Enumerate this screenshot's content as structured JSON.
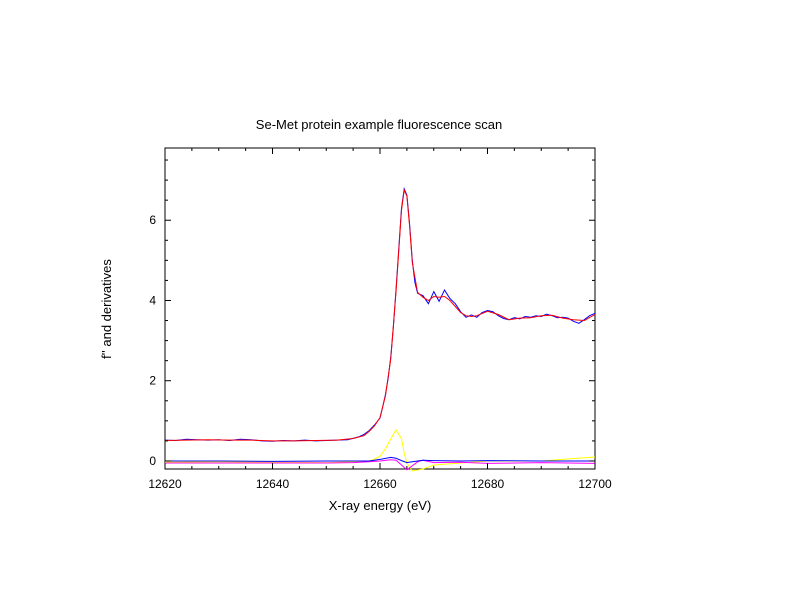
{
  "chart_data": {
    "type": "line",
    "title": "Se-Met protein example fluorescence scan",
    "xlabel": "X-ray energy (eV)",
    "ylabel": "f'' and derivatives",
    "xlim": [
      12620,
      12700
    ],
    "ylim": [
      -0.2,
      7.8
    ],
    "x_ticks": [
      12620,
      12640,
      12660,
      12680,
      12700
    ],
    "y_ticks": [
      0,
      2,
      4,
      6
    ],
    "grid": false,
    "legend": "none",
    "series": [
      {
        "color": "#0000ff",
        "x": [
          12620,
          12622,
          12624,
          12626,
          12628,
          12630,
          12632,
          12634,
          12636,
          12638,
          12640,
          12642,
          12644,
          12646,
          12648,
          12650,
          12652,
          12654,
          12656,
          12657,
          12658,
          12659,
          12660,
          12660.5,
          12661,
          12661.5,
          12662,
          12662.5,
          12663,
          12663.5,
          12664,
          12664.5,
          12665,
          12665.5,
          12666,
          12666.5,
          12667,
          12668,
          12669,
          12670,
          12671,
          12672,
          12673,
          12674,
          12675,
          12676,
          12677,
          12678,
          12679,
          12680,
          12681,
          12682,
          12683,
          12684,
          12685,
          12686,
          12687,
          12688,
          12689,
          12690,
          12691,
          12692,
          12693,
          12694,
          12695,
          12696,
          12697,
          12698,
          12699,
          12700
        ],
        "y": [
          0.52,
          0.51,
          0.54,
          0.53,
          0.52,
          0.53,
          0.51,
          0.54,
          0.53,
          0.5,
          0.49,
          0.51,
          0.5,
          0.52,
          0.5,
          0.51,
          0.52,
          0.53,
          0.6,
          0.66,
          0.76,
          0.9,
          1.07,
          1.35,
          1.65,
          2.05,
          2.6,
          3.35,
          4.3,
          5.3,
          6.3,
          6.78,
          6.62,
          5.9,
          5.0,
          4.45,
          4.18,
          4.12,
          3.92,
          4.22,
          3.98,
          4.26,
          4.05,
          3.92,
          3.72,
          3.58,
          3.64,
          3.58,
          3.7,
          3.75,
          3.72,
          3.62,
          3.55,
          3.52,
          3.57,
          3.54,
          3.6,
          3.58,
          3.62,
          3.6,
          3.66,
          3.62,
          3.57,
          3.58,
          3.56,
          3.48,
          3.43,
          3.52,
          3.62,
          3.68
        ]
      },
      {
        "color": "#ff0000",
        "x": [
          12620,
          12624,
          12628,
          12632,
          12636,
          12640,
          12644,
          12648,
          12652,
          12655,
          12657,
          12658,
          12659,
          12660,
          12661,
          12662,
          12663,
          12664,
          12664.5,
          12665,
          12665.5,
          12666,
          12667,
          12668,
          12669,
          12670,
          12671,
          12672,
          12673,
          12674,
          12675,
          12676,
          12677,
          12678,
          12680,
          12682,
          12684,
          12686,
          12688,
          12690,
          12692,
          12694,
          12696,
          12698,
          12700
        ],
        "y": [
          0.51,
          0.52,
          0.53,
          0.52,
          0.52,
          0.5,
          0.5,
          0.51,
          0.52,
          0.56,
          0.63,
          0.74,
          0.88,
          1.08,
          1.62,
          2.55,
          4.25,
          6.25,
          6.75,
          6.6,
          5.85,
          4.95,
          4.2,
          4.08,
          4.0,
          4.1,
          4.08,
          4.1,
          4.0,
          3.85,
          3.7,
          3.62,
          3.6,
          3.62,
          3.73,
          3.65,
          3.52,
          3.56,
          3.57,
          3.62,
          3.63,
          3.56,
          3.52,
          3.5,
          3.65
        ]
      },
      {
        "color": "#ffff00",
        "x": [
          12620,
          12630,
          12640,
          12650,
          12655,
          12658,
          12659,
          12660,
          12661,
          12662,
          12663,
          12664,
          12664.5,
          12665,
          12666,
          12668,
          12670,
          12675,
          12680,
          12690,
          12698,
          12700
        ],
        "y": [
          -0.03,
          -0.02,
          -0.03,
          -0.04,
          -0.02,
          0.0,
          0.05,
          0.12,
          0.3,
          0.55,
          0.78,
          0.55,
          0.2,
          -0.05,
          -0.25,
          -0.2,
          -0.1,
          -0.05,
          0.0,
          0.0,
          0.08,
          0.1
        ]
      },
      {
        "color": "#ff00ff",
        "x": [
          12620,
          12630,
          12640,
          12650,
          12655,
          12658,
          12660,
          12662,
          12663,
          12664,
          12665,
          12666,
          12667,
          12668,
          12670,
          12675,
          12680,
          12690,
          12700
        ],
        "y": [
          -0.05,
          -0.05,
          -0.05,
          -0.05,
          -0.04,
          -0.02,
          0.0,
          0.03,
          0.02,
          -0.1,
          -0.22,
          -0.12,
          -0.02,
          0.02,
          -0.04,
          -0.03,
          -0.06,
          -0.04,
          -0.06
        ]
      },
      {
        "color": "#0000ff",
        "x": [
          12620,
          12630,
          12640,
          12650,
          12655,
          12658,
          12660,
          12662,
          12663,
          12664,
          12665,
          12666,
          12668,
          12670,
          12675,
          12680,
          12690,
          12700
        ],
        "y": [
          0.0,
          0.0,
          -0.01,
          0.0,
          0.0,
          0.0,
          0.04,
          0.09,
          0.07,
          0.01,
          -0.04,
          -0.02,
          0.02,
          0.01,
          0.0,
          0.01,
          0.0,
          0.0
        ]
      }
    ]
  }
}
